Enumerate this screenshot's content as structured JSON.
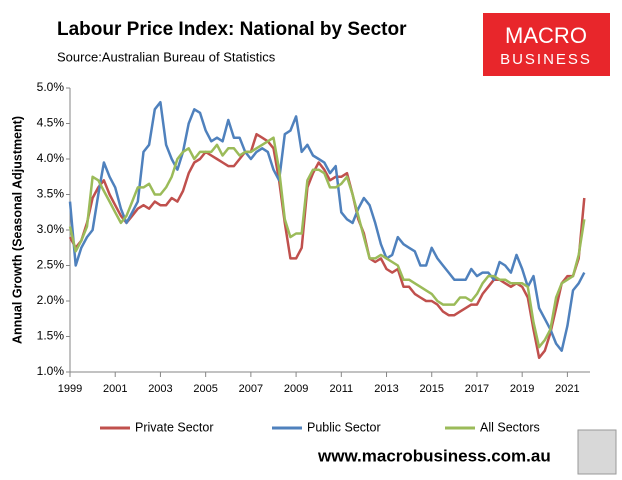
{
  "chart_data": {
    "type": "line",
    "title": "Labour Price Index: National by Sector",
    "subtitle": "Source:Australian Bureau of Statistics",
    "y_label": "Annual Growth (Seasonal Adjustment)",
    "x": [
      1999,
      1999.25,
      1999.5,
      1999.75,
      2000,
      2000.25,
      2000.5,
      2000.75,
      2001,
      2001.25,
      2001.5,
      2001.75,
      2002,
      2002.25,
      2002.5,
      2002.75,
      2003,
      2003.25,
      2003.5,
      2003.75,
      2004,
      2004.25,
      2004.5,
      2004.75,
      2005,
      2005.25,
      2005.5,
      2005.75,
      2006,
      2006.25,
      2006.5,
      2006.75,
      2007,
      2007.25,
      2007.5,
      2007.75,
      2008,
      2008.25,
      2008.5,
      2008.75,
      2009,
      2009.25,
      2009.5,
      2009.75,
      2010,
      2010.25,
      2010.5,
      2010.75,
      2011,
      2011.25,
      2011.5,
      2011.75,
      2012,
      2012.25,
      2012.5,
      2012.75,
      2013,
      2013.25,
      2013.5,
      2013.75,
      2014,
      2014.25,
      2014.5,
      2014.75,
      2015,
      2015.25,
      2015.5,
      2015.75,
      2016,
      2016.25,
      2016.5,
      2016.75,
      2017,
      2017.25,
      2017.5,
      2017.75,
      2018,
      2018.25,
      2018.5,
      2018.75,
      2019,
      2019.25,
      2019.5,
      2019.75,
      2020,
      2020.25,
      2020.5,
      2020.75,
      2021,
      2021.25,
      2021.5,
      2021.75
    ],
    "series": [
      {
        "name": "Private Sector",
        "color": "#c0504d",
        "values": [
          2.9,
          2.75,
          2.85,
          3.1,
          3.45,
          3.6,
          3.7,
          3.5,
          3.35,
          3.2,
          3.1,
          3.2,
          3.3,
          3.35,
          3.3,
          3.4,
          3.35,
          3.35,
          3.45,
          3.4,
          3.55,
          3.8,
          3.95,
          4.0,
          4.1,
          4.05,
          4.0,
          3.95,
          3.9,
          3.9,
          4.0,
          4.1,
          4.1,
          4.35,
          4.3,
          4.25,
          4.15,
          3.7,
          3.1,
          2.6,
          2.6,
          2.75,
          3.6,
          3.8,
          3.95,
          3.85,
          3.7,
          3.75,
          3.75,
          3.8,
          3.5,
          3.15,
          2.95,
          2.6,
          2.55,
          2.6,
          2.45,
          2.4,
          2.45,
          2.2,
          2.2,
          2.1,
          2.05,
          2.0,
          2.0,
          1.95,
          1.85,
          1.8,
          1.8,
          1.85,
          1.9,
          1.95,
          1.95,
          2.1,
          2.2,
          2.3,
          2.3,
          2.25,
          2.2,
          2.25,
          2.2,
          2.05,
          1.6,
          1.2,
          1.3,
          1.55,
          1.9,
          2.25,
          2.35,
          2.35,
          2.6,
          3.45
        ]
      },
      {
        "name": "Public Sector",
        "color": "#4f81bd",
        "values": [
          3.4,
          2.5,
          2.75,
          2.9,
          3.0,
          3.5,
          3.95,
          3.75,
          3.6,
          3.3,
          3.1,
          3.25,
          3.4,
          4.1,
          4.2,
          4.7,
          4.8,
          4.2,
          4.0,
          3.85,
          4.1,
          4.5,
          4.7,
          4.65,
          4.4,
          4.25,
          4.3,
          4.25,
          4.55,
          4.3,
          4.3,
          4.1,
          4.0,
          4.1,
          4.15,
          4.1,
          3.85,
          3.7,
          4.35,
          4.4,
          4.6,
          4.1,
          4.2,
          4.05,
          4.0,
          3.95,
          3.8,
          3.9,
          3.25,
          3.15,
          3.1,
          3.3,
          3.45,
          3.35,
          3.1,
          2.8,
          2.6,
          2.65,
          2.9,
          2.8,
          2.75,
          2.7,
          2.5,
          2.5,
          2.75,
          2.6,
          2.5,
          2.4,
          2.3,
          2.3,
          2.3,
          2.45,
          2.35,
          2.4,
          2.4,
          2.3,
          2.55,
          2.5,
          2.4,
          2.65,
          2.45,
          2.2,
          2.35,
          1.9,
          1.75,
          1.6,
          1.4,
          1.3,
          1.65,
          2.15,
          2.25,
          2.4
        ]
      },
      {
        "name": "All Sectors",
        "color": "#9bbb59",
        "values": [
          3.05,
          2.7,
          2.85,
          3.05,
          3.75,
          3.7,
          3.55,
          3.4,
          3.25,
          3.1,
          3.2,
          3.4,
          3.6,
          3.6,
          3.65,
          3.5,
          3.5,
          3.6,
          3.75,
          4.0,
          4.1,
          4.15,
          4.0,
          4.1,
          4.1,
          4.1,
          4.2,
          4.05,
          4.15,
          4.15,
          4.05,
          4.1,
          4.1,
          4.15,
          4.2,
          4.25,
          4.3,
          3.85,
          3.15,
          2.9,
          2.95,
          2.95,
          3.7,
          3.85,
          3.85,
          3.8,
          3.6,
          3.6,
          3.65,
          3.75,
          3.5,
          3.2,
          2.9,
          2.6,
          2.6,
          2.65,
          2.6,
          2.55,
          2.5,
          2.3,
          2.3,
          2.25,
          2.2,
          2.15,
          2.1,
          2.0,
          1.95,
          1.95,
          1.95,
          2.05,
          2.05,
          2.0,
          2.1,
          2.25,
          2.35,
          2.35,
          2.3,
          2.3,
          2.25,
          2.25,
          2.25,
          2.2,
          1.7,
          1.35,
          1.45,
          1.6,
          2.05,
          2.25,
          2.3,
          2.35,
          2.65,
          3.15
        ]
      }
    ],
    "xlim": [
      1999,
      2022
    ],
    "xticks": [
      1999,
      2001,
      2003,
      2005,
      2007,
      2009,
      2011,
      2013,
      2015,
      2017,
      2019,
      2021
    ],
    "ylim": [
      1,
      5
    ],
    "yticks": [
      {
        "value": 1,
        "label": "1.0%"
      },
      {
        "value": 1.5,
        "label": "1.5%"
      },
      {
        "value": 2,
        "label": "2.0%"
      },
      {
        "value": 2.5,
        "label": "2.5%"
      },
      {
        "value": 3,
        "label": "3.0%"
      },
      {
        "value": 3.5,
        "label": "3.5%"
      },
      {
        "value": 4,
        "label": "4.0%"
      },
      {
        "value": 4.5,
        "label": "4.5%"
      },
      {
        "value": 5,
        "label": "5.0%"
      }
    ],
    "grid": false,
    "legend": "bottom"
  },
  "branding": {
    "logo_top": "MACRO",
    "logo_bottom": "BUSINESS",
    "website": "www.macrobusiness.com.au"
  }
}
